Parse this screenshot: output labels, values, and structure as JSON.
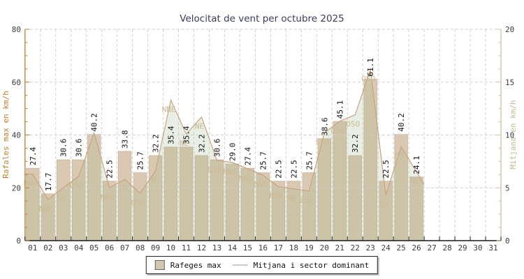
{
  "title": "Velocitat de vent per octubre 2025",
  "legend": {
    "bar_label": "Rafeges max",
    "line_label": "Mitjana i sector dominant"
  },
  "left_axis": {
    "label": "Rafales max en km/h",
    "min": 0,
    "max": 80,
    "major_ticks": [
      0,
      20,
      40,
      60,
      80
    ],
    "minor_step": 5
  },
  "right_axis": {
    "label": "Mitjana en km/h",
    "min": 0,
    "max": 20,
    "major_ticks": [
      0,
      5,
      10,
      15,
      20
    ],
    "minor_step": 1.25
  },
  "x_axis": {
    "days": [
      "01",
      "02",
      "03",
      "04",
      "05",
      "06",
      "07",
      "08",
      "09",
      "10",
      "11",
      "12",
      "13",
      "14",
      "15",
      "16",
      "17",
      "18",
      "19",
      "20",
      "21",
      "22",
      "23",
      "24",
      "25",
      "26",
      "27",
      "28",
      "29",
      "30",
      "31"
    ]
  },
  "colors": {
    "title": "#3b3b5e",
    "bar_fill": "#dbc8b2",
    "bar_stroke": "#c7b59b",
    "area_fill": "rgba(155,182,132,0.22)",
    "line": "#c8a37e",
    "sector_label": "#ccb996",
    "value_label": "#111111",
    "grid": "#cdcdcd",
    "left_axis": "#c08030",
    "right_axis": "#cfc3a2",
    "bottom_axis": "#1a1a1a",
    "tick_text": "#3c3c3c"
  },
  "chart_data": {
    "type": "bar",
    "title": "Velocitat de vent per octubre 2025",
    "categories": [
      "01",
      "02",
      "03",
      "04",
      "05",
      "06",
      "07",
      "08",
      "09",
      "10",
      "11",
      "12",
      "13",
      "14",
      "15",
      "16",
      "17",
      "18",
      "19",
      "20",
      "21",
      "22",
      "23",
      "24",
      "25",
      "26"
    ],
    "series": [
      {
        "name": "Rafeges max",
        "type": "bar",
        "axis": "left",
        "unit": "km/h",
        "values": [
          27.4,
          17.7,
          30.6,
          30.6,
          40.2,
          22.5,
          33.8,
          25.7,
          32.2,
          35.4,
          35.4,
          32.2,
          30.6,
          29.0,
          27.4,
          25.7,
          22.5,
          22.5,
          25.7,
          38.6,
          45.1,
          32.2,
          61.1,
          22.5,
          40.2,
          24.1
        ]
      },
      {
        "name": "Mitjana i sector dominant",
        "type": "area-line",
        "axis": "right",
        "unit": "km/h",
        "values": [
          6.3,
          3.9,
          5.0,
          6.1,
          10.2,
          5.0,
          5.8,
          4.5,
          6.6,
          13.3,
          10.1,
          11.7,
          7.6,
          7.4,
          6.8,
          6.2,
          5.1,
          4.9,
          4.7,
          10.2,
          11.3,
          11.9,
          16.2,
          4.3,
          8.9,
          6.5
        ],
        "sectors": [
          "NNO",
          "NNE",
          "SO",
          "OSO",
          "",
          "NNO",
          "SO",
          "OSO",
          "N",
          "NNE",
          "NE",
          "NE",
          "ENE",
          "NNE",
          "NNO",
          "NNO",
          "NNE",
          "NE",
          "ESE",
          "SSO",
          "OSO",
          "OSO",
          "OSO",
          "SO",
          "SO",
          "NE"
        ]
      }
    ],
    "xlabel": "",
    "ylabel_left": "Rafales max en km/h",
    "ylabel_right": "Mitjana en km/h",
    "ylim_left": [
      0,
      80
    ],
    "ylim_right": [
      0,
      20
    ],
    "grid": true,
    "legend_position": "bottom"
  }
}
